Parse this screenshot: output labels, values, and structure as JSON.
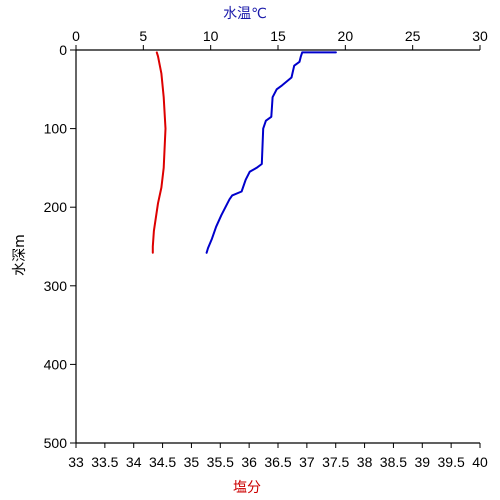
{
  "chart_data": {
    "type": "line",
    "y_axis": {
      "label": "水深m",
      "range": [
        0,
        500
      ],
      "reversed": true,
      "ticks": [
        "0",
        "100",
        "200",
        "300",
        "400",
        "500"
      ]
    },
    "x_axis_top": {
      "label": "水温℃",
      "color": "#1a1aaa",
      "range": [
        0,
        30
      ],
      "ticks": [
        "0",
        "5",
        "10",
        "15",
        "20",
        "25",
        "30"
      ]
    },
    "x_axis_bottom": {
      "label": "塩分",
      "color": "#cc0000",
      "range": [
        33,
        40
      ],
      "ticks": [
        "33",
        "33.5",
        "34",
        "34.5",
        "35",
        "35.5",
        "36",
        "36.5",
        "37",
        "37.5",
        "38",
        "38.5",
        "39",
        "39.5",
        "40"
      ]
    },
    "grid": false,
    "series": [
      {
        "axis": "top",
        "color": "#0000cc",
        "points": [
          {
            "x": 19.3,
            "y": 3
          },
          {
            "x": 16.8,
            "y": 3
          },
          {
            "x": 16.7,
            "y": 8
          },
          {
            "x": 16.6,
            "y": 15
          },
          {
            "x": 16.2,
            "y": 20
          },
          {
            "x": 16.0,
            "y": 35
          },
          {
            "x": 15.3,
            "y": 45
          },
          {
            "x": 14.9,
            "y": 50
          },
          {
            "x": 14.6,
            "y": 60
          },
          {
            "x": 14.5,
            "y": 85
          },
          {
            "x": 14.1,
            "y": 90
          },
          {
            "x": 13.9,
            "y": 100
          },
          {
            "x": 13.8,
            "y": 145
          },
          {
            "x": 13.4,
            "y": 150
          },
          {
            "x": 12.9,
            "y": 155
          },
          {
            "x": 12.6,
            "y": 165
          },
          {
            "x": 12.3,
            "y": 180
          },
          {
            "x": 11.6,
            "y": 185
          },
          {
            "x": 11.4,
            "y": 190
          },
          {
            "x": 10.8,
            "y": 210
          },
          {
            "x": 10.4,
            "y": 225
          },
          {
            "x": 10.1,
            "y": 240
          },
          {
            "x": 9.8,
            "y": 252
          },
          {
            "x": 9.7,
            "y": 258
          }
        ]
      },
      {
        "axis": "bottom",
        "color": "#dd0000",
        "points": [
          {
            "x": 34.4,
            "y": 3
          },
          {
            "x": 34.42,
            "y": 8
          },
          {
            "x": 34.48,
            "y": 30
          },
          {
            "x": 34.52,
            "y": 60
          },
          {
            "x": 34.55,
            "y": 100
          },
          {
            "x": 34.52,
            "y": 150
          },
          {
            "x": 34.48,
            "y": 175
          },
          {
            "x": 34.42,
            "y": 195
          },
          {
            "x": 34.35,
            "y": 230
          },
          {
            "x": 34.33,
            "y": 250
          },
          {
            "x": 34.33,
            "y": 258
          }
        ]
      }
    ]
  }
}
